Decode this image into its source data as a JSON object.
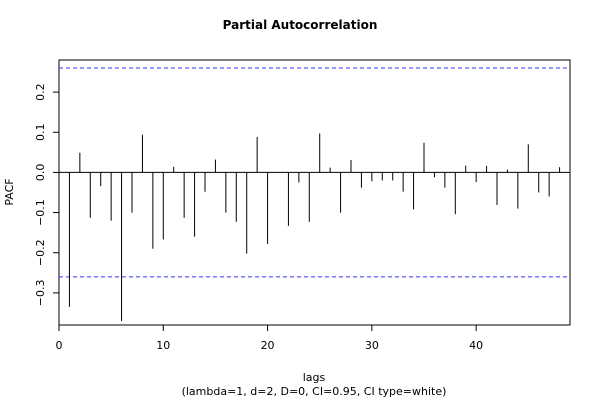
{
  "chart_data": {
    "type": "bar",
    "title": "Partial Autocorrelation",
    "xlabel": "lags",
    "subtitle": "(lambda=1, d=2, D=0, CI=0.95, CI type=white)",
    "ylabel": "PACF",
    "xlim": [
      0,
      49
    ],
    "ylim": [
      -0.38,
      0.28
    ],
    "x_ticks": [
      0,
      10,
      20,
      30,
      40
    ],
    "y_ticks": [
      -0.3,
      -0.2,
      -0.1,
      0.0,
      0.1,
      0.2
    ],
    "y_tick_labels": [
      "−0.3",
      "−0.2",
      "−0.1",
      "0.0",
      "0.1",
      "0.2"
    ],
    "confidence_limit": 0.26,
    "confidence_color": "#3333ff",
    "lags": [
      1,
      2,
      3,
      4,
      5,
      6,
      7,
      8,
      9,
      10,
      11,
      12,
      13,
      14,
      15,
      16,
      17,
      18,
      19,
      20,
      21,
      22,
      23,
      24,
      25,
      26,
      27,
      28,
      29,
      30,
      31,
      32,
      33,
      34,
      35,
      36,
      37,
      38,
      39,
      40,
      41,
      42,
      43,
      44,
      45,
      46,
      47,
      48
    ],
    "values": [
      -0.335,
      0.049,
      -0.113,
      -0.034,
      -0.12,
      -0.37,
      -0.1,
      0.094,
      -0.19,
      -0.167,
      0.014,
      -0.113,
      -0.16,
      -0.048,
      0.032,
      -0.1,
      -0.123,
      -0.202,
      0.088,
      -0.178,
      0.0,
      -0.133,
      -0.025,
      -0.123,
      0.097,
      0.012,
      -0.1,
      0.031,
      -0.038,
      -0.022,
      -0.02,
      -0.02,
      -0.048,
      -0.092,
      0.074,
      -0.012,
      -0.038,
      -0.104,
      0.017,
      -0.024,
      0.016,
      -0.081,
      0.007,
      -0.09,
      0.07,
      -0.05,
      -0.06,
      0.013
    ]
  }
}
